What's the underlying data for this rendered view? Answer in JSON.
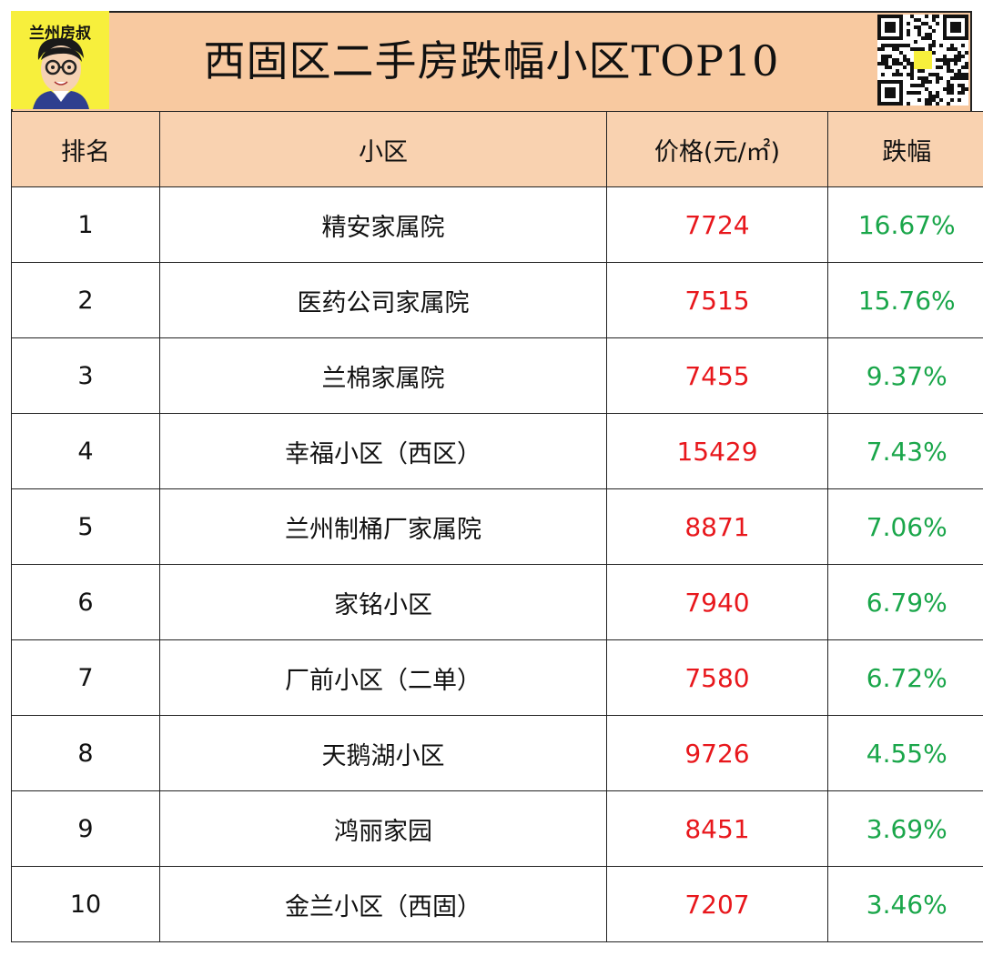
{
  "header": {
    "brand_label": "兰州房叔",
    "title": "西固区二手房跌幅小区TOP10"
  },
  "colors": {
    "header_bg": "#f8c9a0",
    "table_header_bg": "#f9d2b0",
    "logo_bg": "#f7ef3c",
    "price_text": "#e8171c",
    "drop_text": "#1aa64a"
  },
  "icons": {
    "logo": "cartoon-avatar-icon",
    "qr": "qr-code-icon"
  },
  "table": {
    "columns": [
      "排名",
      "小区",
      "价格(元/㎡)",
      "跌幅"
    ],
    "rows": [
      {
        "rank": "1",
        "name": "精安家属院",
        "price": "7724",
        "drop": "16.67%"
      },
      {
        "rank": "2",
        "name": "医药公司家属院",
        "price": "7515",
        "drop": "15.76%"
      },
      {
        "rank": "3",
        "name": "兰棉家属院",
        "price": "7455",
        "drop": "9.37%"
      },
      {
        "rank": "4",
        "name": "幸福小区（西区）",
        "price": "15429",
        "drop": "7.43%"
      },
      {
        "rank": "5",
        "name": "兰州制桶厂家属院",
        "price": "8871",
        "drop": "7.06%"
      },
      {
        "rank": "6",
        "name": "家铭小区",
        "price": "7940",
        "drop": "6.79%"
      },
      {
        "rank": "7",
        "name": "厂前小区（二单）",
        "price": "7580",
        "drop": "6.72%"
      },
      {
        "rank": "8",
        "name": "天鹅湖小区",
        "price": "9726",
        "drop": "4.55%"
      },
      {
        "rank": "9",
        "name": "鸿丽家园",
        "price": "8451",
        "drop": "3.69%"
      },
      {
        "rank": "10",
        "name": "金兰小区（西固）",
        "price": "7207",
        "drop": "3.46%"
      }
    ]
  }
}
